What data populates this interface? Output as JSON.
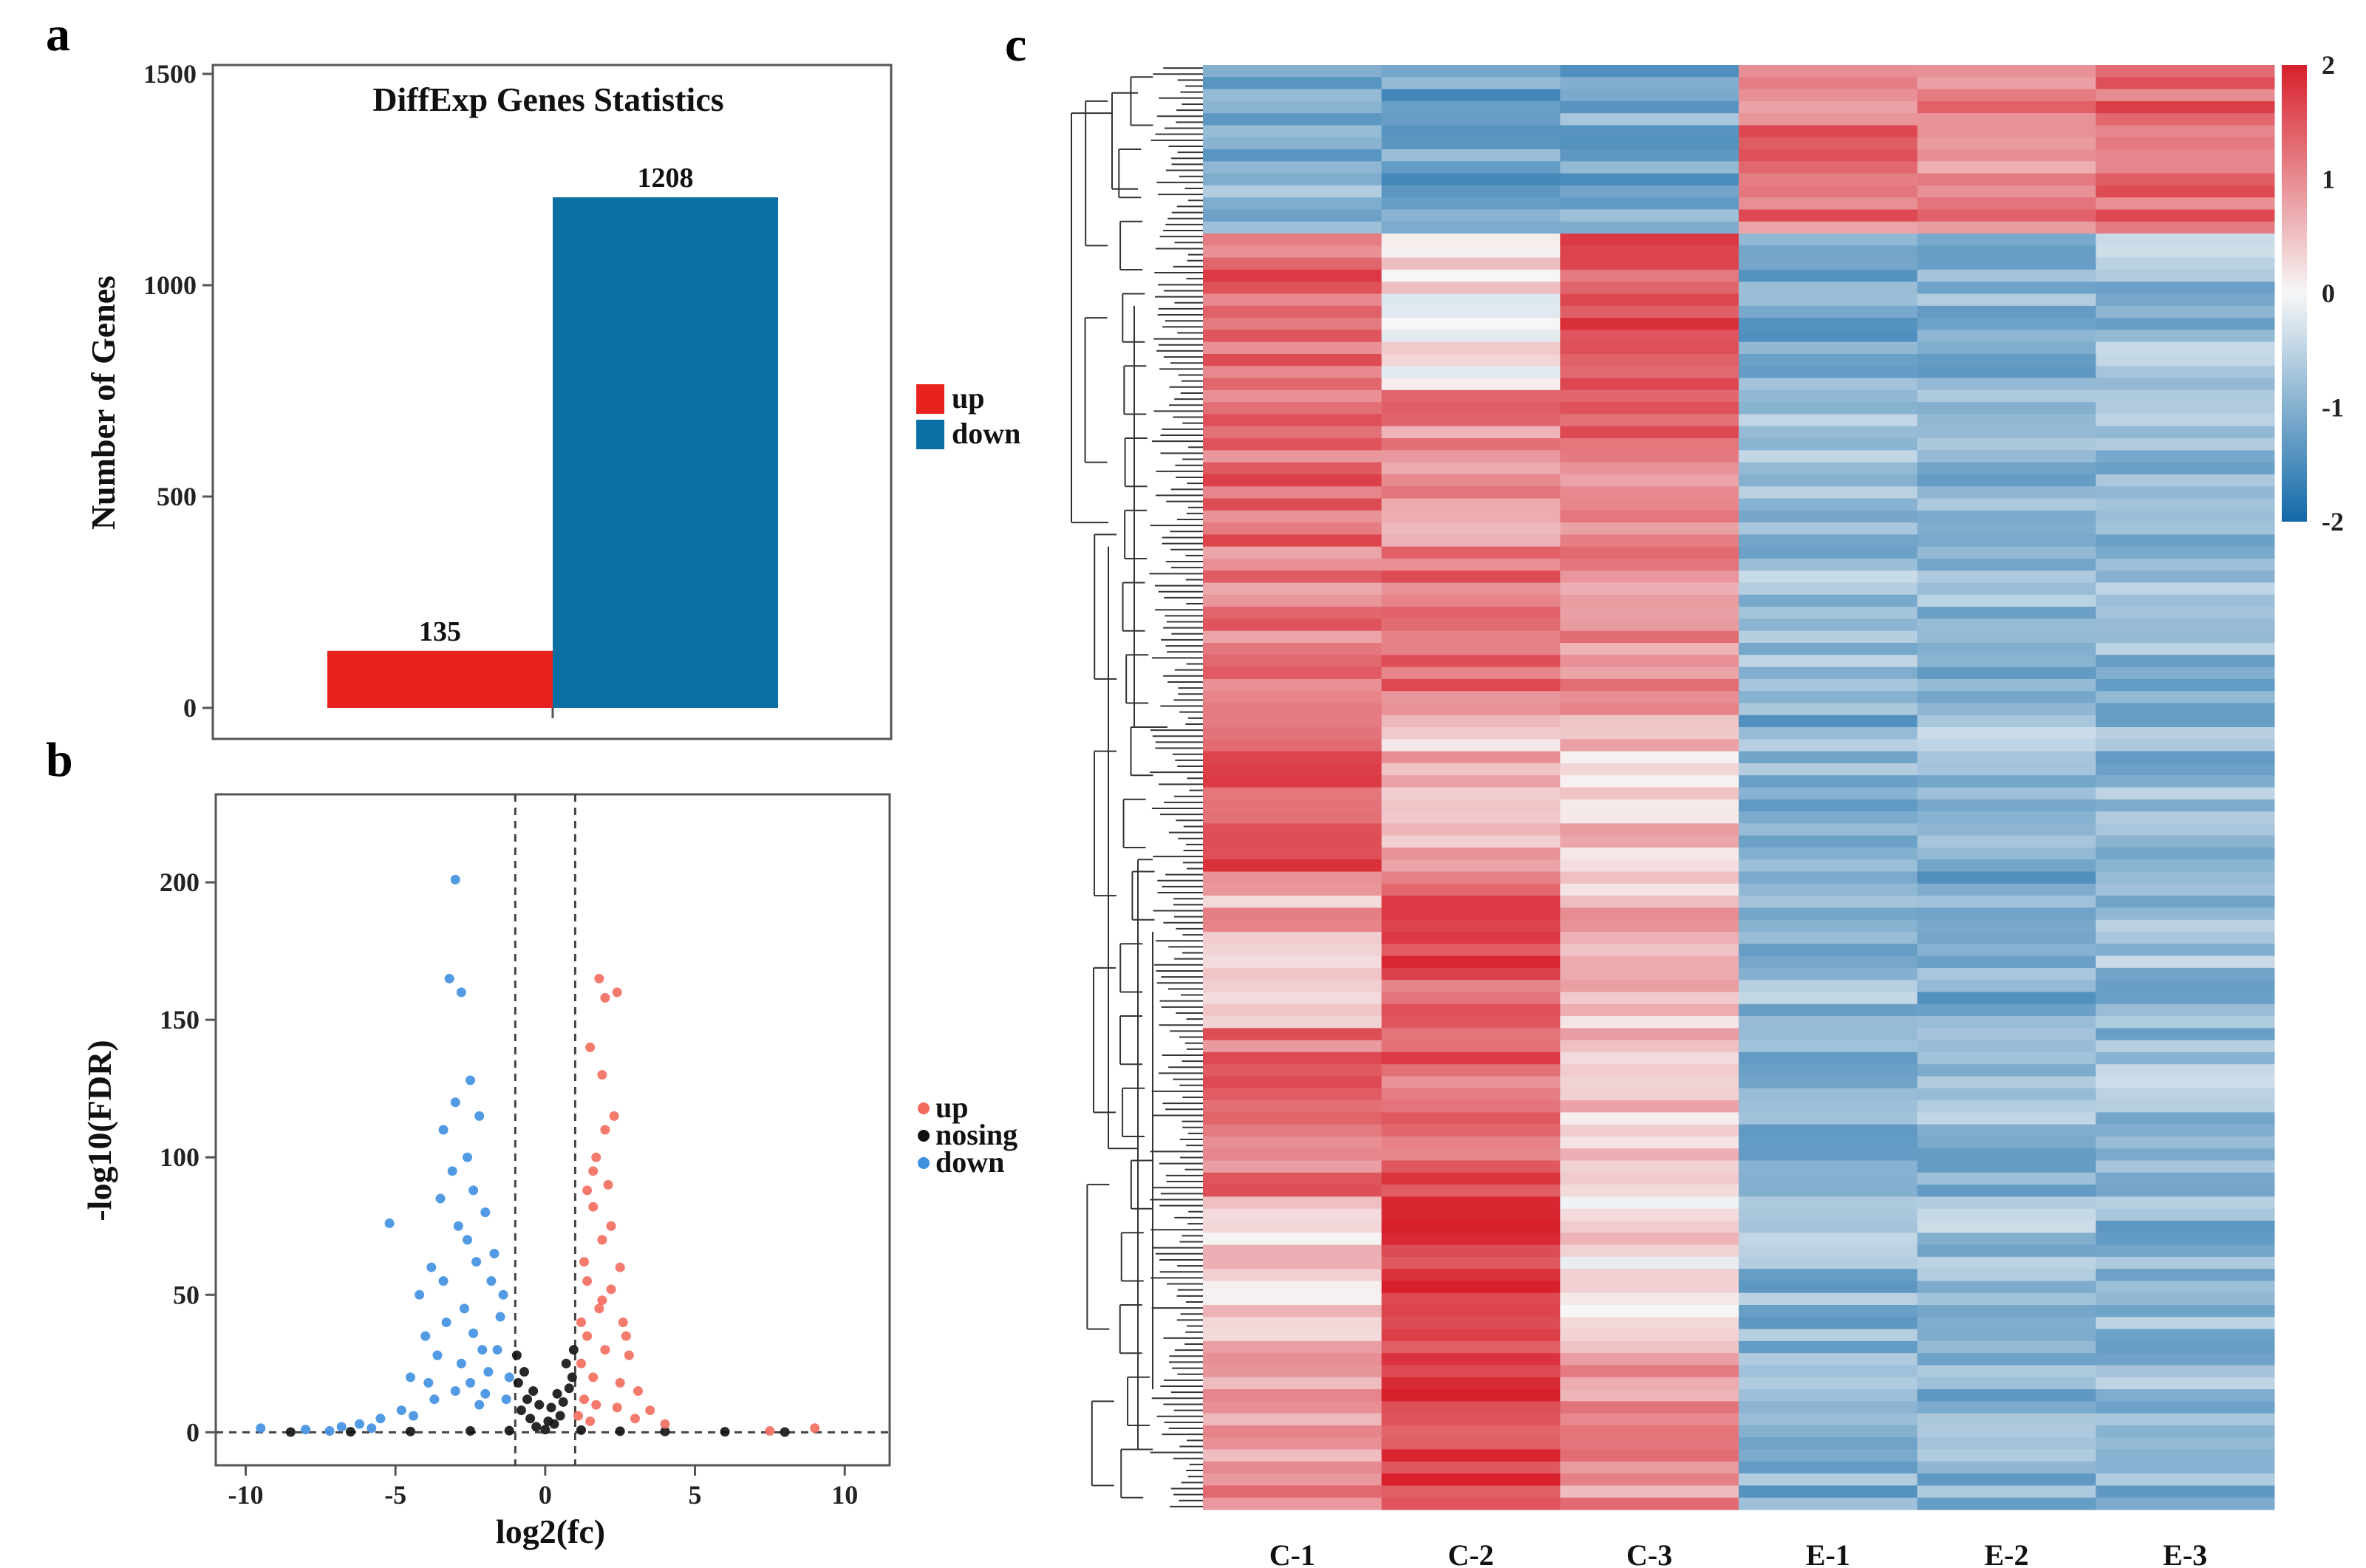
{
  "colors": {
    "up_bar": "#e8231f",
    "down_bar": "#0b6fa4",
    "up_point": "#f26b5d",
    "down_point": "#3f8fe0",
    "nosing_point": "#111111",
    "heat_high": "#d7202b",
    "heat_mid": "#f7f7f7",
    "heat_low": "#1269a8"
  },
  "panels": {
    "a": "a",
    "b": "b",
    "c": "c"
  },
  "chart_data": [
    {
      "panel": "a",
      "type": "bar",
      "title": "DiffExp Genes Statistics",
      "categories": [
        "up",
        "down"
      ],
      "values": [
        135,
        1208
      ],
      "value_labels": [
        "135",
        "1208"
      ],
      "xlabel": "",
      "ylabel": "Number of Genes",
      "ylim": [
        0,
        1500
      ],
      "yticks": [
        0,
        500,
        1000,
        1500
      ],
      "ytick_labels": [
        "0",
        "500",
        "1000",
        "1500"
      ],
      "legend": [
        "up",
        "down"
      ],
      "legend_position": "right"
    },
    {
      "panel": "b",
      "type": "scatter",
      "title": "",
      "xlabel": "log2(fc)",
      "ylabel": "-log10(FDR)",
      "xlim": [
        -11,
        11.5
      ],
      "ylim": [
        -12,
        232
      ],
      "xticks": [
        -10,
        -5,
        0,
        5,
        10
      ],
      "xtick_labels": [
        "-10",
        "-5",
        "0",
        "5",
        "10"
      ],
      "yticks": [
        0,
        50,
        100,
        150,
        200
      ],
      "ytick_labels": [
        "0",
        "50",
        "100",
        "150",
        "200"
      ],
      "thresholds": {
        "log2fc": [
          -1,
          1
        ],
        "fdr_line": 0
      },
      "legend": [
        "up",
        "nosing",
        "down"
      ],
      "legend_position": "right",
      "series": [
        {
          "name": "up",
          "points": [
            [
              1.3,
              12
            ],
            [
              1.6,
              20
            ],
            [
              2.0,
              30
            ],
            [
              1.8,
              45
            ],
            [
              2.2,
              52
            ],
            [
              2.5,
              60
            ],
            [
              1.4,
              35
            ],
            [
              1.9,
              70
            ],
            [
              2.1,
              90
            ],
            [
              1.7,
              100
            ],
            [
              2.3,
              115
            ],
            [
              1.5,
              140
            ],
            [
              1.8,
              165
            ],
            [
              2.0,
              158
            ],
            [
              2.4,
              160
            ],
            [
              1.9,
              130
            ],
            [
              1.6,
              95
            ],
            [
              2.6,
              40
            ],
            [
              1.2,
              25
            ],
            [
              1.4,
              55
            ],
            [
              2.8,
              28
            ],
            [
              3.1,
              15
            ],
            [
              3.5,
              8
            ],
            [
              2.2,
              75
            ],
            [
              1.6,
              82
            ],
            [
              2.0,
              110
            ],
            [
              1.3,
              62
            ],
            [
              2.5,
              18
            ],
            [
              3.0,
              5
            ],
            [
              1.7,
              10
            ],
            [
              1.1,
              6
            ],
            [
              4.0,
              3
            ],
            [
              1.5,
              4
            ],
            [
              2.4,
              9
            ],
            [
              9.0,
              1.5
            ],
            [
              7.5,
              0.5
            ],
            [
              1.2,
              40
            ],
            [
              1.9,
              48
            ],
            [
              2.7,
              35
            ],
            [
              1.4,
              88
            ]
          ]
        },
        {
          "name": "down",
          "points": [
            [
              -3.0,
              201
            ],
            [
              -3.2,
              165
            ],
            [
              -2.8,
              160
            ],
            [
              -2.5,
              128
            ],
            [
              -3.0,
              120
            ],
            [
              -2.2,
              115
            ],
            [
              -3.4,
              110
            ],
            [
              -2.6,
              100
            ],
            [
              -3.1,
              95
            ],
            [
              -2.4,
              88
            ],
            [
              -3.5,
              85
            ],
            [
              -2.0,
              80
            ],
            [
              -2.9,
              75
            ],
            [
              -5.2,
              76
            ],
            [
              -3.8,
              60
            ],
            [
              -4.2,
              50
            ],
            [
              -2.3,
              62
            ],
            [
              -1.8,
              55
            ],
            [
              -2.7,
              45
            ],
            [
              -3.3,
              40
            ],
            [
              -4.0,
              35
            ],
            [
              -1.5,
              42
            ],
            [
              -2.1,
              30
            ],
            [
              -3.6,
              28
            ],
            [
              -4.5,
              20
            ],
            [
              -1.9,
              22
            ],
            [
              -2.5,
              18
            ],
            [
              -3.0,
              15
            ],
            [
              -1.3,
              12
            ],
            [
              -2.2,
              10
            ],
            [
              -4.8,
              8
            ],
            [
              -5.5,
              5
            ],
            [
              -6.2,
              3
            ],
            [
              -3.7,
              12
            ],
            [
              -2.8,
              25
            ],
            [
              -1.6,
              30
            ],
            [
              -3.9,
              18
            ],
            [
              -2.4,
              36
            ],
            [
              -1.4,
              50
            ],
            [
              -9.5,
              1.5
            ],
            [
              -8.0,
              1
            ],
            [
              -7.2,
              0.5
            ],
            [
              -6.8,
              2
            ],
            [
              -5.8,
              1.5
            ],
            [
              -4.4,
              6
            ],
            [
              -1.7,
              65
            ],
            [
              -2.6,
              70
            ],
            [
              -3.4,
              55
            ],
            [
              -1.2,
              20
            ],
            [
              -2.0,
              14
            ]
          ]
        },
        {
          "name": "nosing",
          "points": [
            [
              -0.8,
              8
            ],
            [
              -0.6,
              12
            ],
            [
              -0.4,
              15
            ],
            [
              -0.2,
              10
            ],
            [
              0.2,
              9
            ],
            [
              0.4,
              14
            ],
            [
              0.6,
              11
            ],
            [
              0.8,
              16
            ],
            [
              0.9,
              20
            ],
            [
              -0.9,
              18
            ],
            [
              -0.5,
              5
            ],
            [
              0.5,
              6
            ],
            [
              0.3,
              3
            ],
            [
              -0.3,
              2
            ],
            [
              0.0,
              1
            ],
            [
              1.2,
              0.8
            ],
            [
              -1.2,
              0.6
            ],
            [
              2.5,
              0.4
            ],
            [
              -2.5,
              0.5
            ],
            [
              4.0,
              0.3
            ],
            [
              -4.5,
              0.3
            ],
            [
              6.0,
              0.2
            ],
            [
              -6.5,
              0.2
            ],
            [
              8.0,
              0.1
            ],
            [
              -8.5,
              0.1
            ],
            [
              0.7,
              25
            ],
            [
              -0.7,
              22
            ],
            [
              0.95,
              30
            ],
            [
              -0.95,
              28
            ],
            [
              0.1,
              4
            ]
          ]
        }
      ]
    },
    {
      "panel": "c",
      "type": "heatmap",
      "columns": [
        "C-1",
        "C-2",
        "C-3",
        "E-1",
        "E-2",
        "E-3"
      ],
      "colorbar": {
        "min": -2,
        "max": 2,
        "ticks": [
          2,
          1,
          0,
          -1,
          -2
        ],
        "tick_labels": [
          "2",
          "1",
          "0",
          "-1",
          "-2"
        ]
      },
      "row_blocks": [
        {
          "values": [
            -1.0,
            -1.2,
            -1.1,
            1.2,
            1.0,
            1.3
          ]
        },
        {
          "values": [
            1.4,
            0.2,
            1.6,
            -1.1,
            -0.9,
            -0.8
          ]
        },
        {
          "values": [
            1.3,
            1.0,
            1.2,
            -0.9,
            -1.0,
            -0.8
          ]
        },
        {
          "values": [
            1.1,
            1.2,
            1.0,
            -0.8,
            -0.9,
            -0.9
          ]
        },
        {
          "values": [
            1.6,
            0.6,
            0.5,
            -1.0,
            -0.8,
            -0.9
          ]
        },
        {
          "values": [
            0.7,
            1.5,
            0.6,
            -0.9,
            -1.0,
            -0.8
          ]
        },
        {
          "values": [
            1.2,
            1.4,
            0.5,
            -1.0,
            -0.9,
            -0.8
          ]
        },
        {
          "values": [
            0.4,
            1.8,
            0.2,
            -0.9,
            -0.8,
            -0.9
          ]
        },
        {
          "values": [
            0.9,
            1.7,
            0.9,
            -1.0,
            -0.9,
            -0.9
          ]
        }
      ]
    }
  ]
}
